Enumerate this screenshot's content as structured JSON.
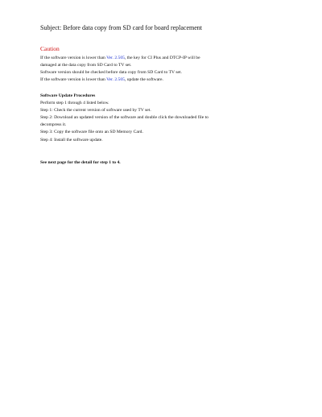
{
  "header": {
    "subject": "Subject: Before data copy from SD card for board replacement"
  },
  "caution": {
    "title": "Caution",
    "lines": [
      [
        "If the software version is lower than ",
        "Ver. 2.505",
        ", the key for CI Plus and DTCP-IP will be"
      ],
      [
        "damaged at the data copy from SD Card to TV set."
      ],
      [
        "Software version should be checked before data copy from SD Card to TV set."
      ],
      [
        "If the software version is lower than ",
        "Ver. 2.505",
        ", update the software."
      ]
    ]
  },
  "procedure": {
    "title": "Software Update Procedures",
    "lines": [
      "Perform step 1 through 4 listed below.",
      "Step 1: Check the current version of software used by TV set.",
      "Step 2: Download an updated version of the software and double click the downloaded file to",
      "decompress it.",
      "Step 3: Copy the software file onto an SD Memory Card.",
      "Step 4: Install the software update."
    ]
  },
  "footer": {
    "note": "See next page for the detail for step 1 to 4."
  }
}
